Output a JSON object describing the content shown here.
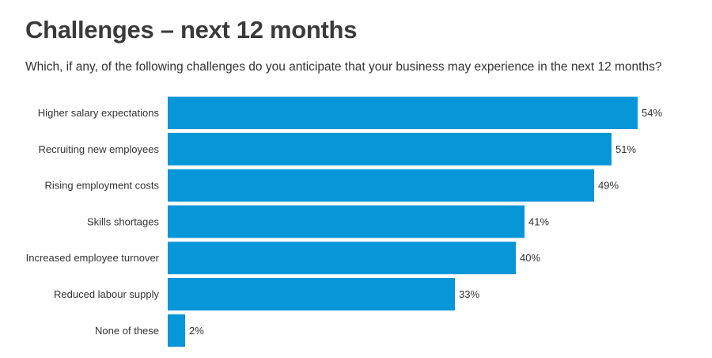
{
  "header": {
    "title": "Challenges – next 12 months",
    "subtitle": "Which, if any, of the following challenges do you anticipate that your business may experience in the next 12 months?"
  },
  "colors": {
    "bar": "#0796d8"
  },
  "chart_data": {
    "type": "bar",
    "orientation": "horizontal",
    "title": "Challenges – next 12 months",
    "subtitle": "Which, if any, of the following challenges do you anticipate that your business may experience in the next 12 months?",
    "categories": [
      "Higher salary expectations",
      "Recruiting new employees",
      "Rising employment costs",
      "Skills shortages",
      "Increased employee turnover",
      "Reduced labour supply",
      "None of these"
    ],
    "values": [
      54,
      51,
      49,
      41,
      40,
      33,
      2
    ],
    "value_labels": [
      "54%",
      "51%",
      "49%",
      "41%",
      "40%",
      "33%",
      "2%"
    ],
    "unit": "%",
    "xlim": [
      0,
      54
    ],
    "grid": false,
    "legend": false
  }
}
